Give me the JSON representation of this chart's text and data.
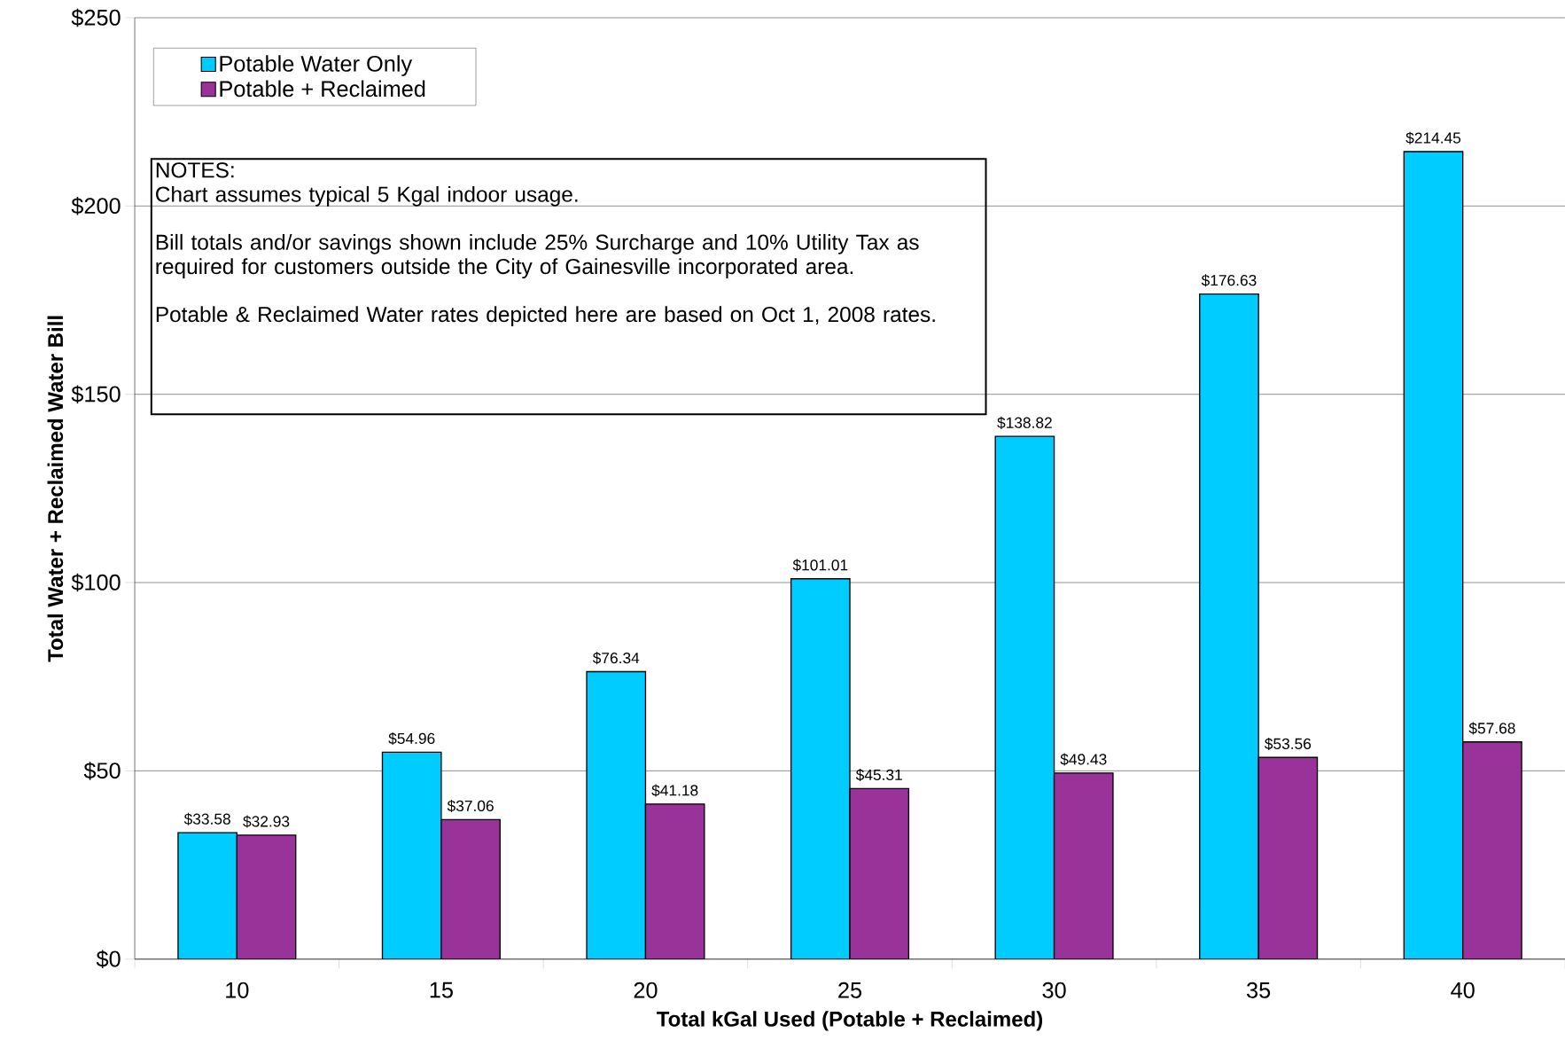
{
  "chart_data": {
    "type": "bar",
    "xlabel": "Total kGal Used (Potable + Reclaimed)",
    "ylabel": "Total Water + Reclaimed Water Bill",
    "categories": [
      "10",
      "15",
      "20",
      "25",
      "30",
      "35",
      "40"
    ],
    "series": [
      {
        "name": "Potable Water Only",
        "color": "#00ccff",
        "values": [
          33.58,
          54.96,
          76.34,
          101.01,
          138.82,
          176.63,
          214.45
        ],
        "value_labels": [
          "$33.58",
          "$54.96",
          "$76.34",
          "$101.01",
          "$138.82",
          "$176.63",
          "$214.45"
        ]
      },
      {
        "name": "Potable + Reclaimed",
        "color": "#993399",
        "values": [
          32.93,
          37.06,
          41.18,
          45.31,
          49.43,
          53.56,
          57.68
        ],
        "value_labels": [
          "$32.93",
          "$37.06",
          "$41.18",
          "$45.31",
          "$49.43",
          "$53.56",
          "$57.68"
        ]
      }
    ],
    "ylim": [
      0,
      250
    ],
    "yticks": [
      {
        "value": 0,
        "label": "$0"
      },
      {
        "value": 50,
        "label": "$50"
      },
      {
        "value": 100,
        "label": "$100"
      },
      {
        "value": 150,
        "label": "$150"
      },
      {
        "value": 200,
        "label": "$200"
      },
      {
        "value": 250,
        "label": "$250"
      }
    ],
    "grid": "y",
    "legend": "top left",
    "annotations": [
      "NOTES:",
      "Chart assumes typical 5 Kgal indoor usage.",
      "Bill totals and/or savings shown include 25% Surcharge and 10% Utility Tax as required for customers outside the City of Gainesville incorporated area.",
      "Potable & Reclaimed Water rates depicted here are based on Oct 1, 2008 rates."
    ]
  }
}
